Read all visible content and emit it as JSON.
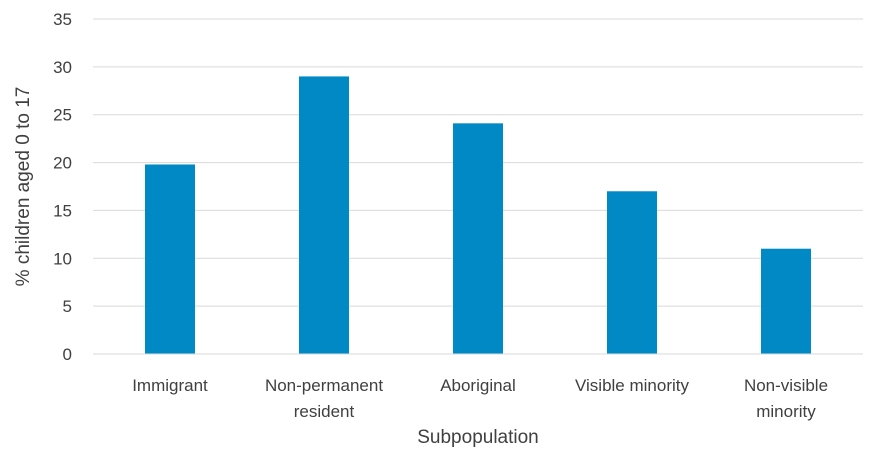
{
  "chart_data": {
    "type": "bar",
    "title": "",
    "xlabel": "Subpopulation",
    "ylabel": "% children aged 0 to 17",
    "categories": [
      [
        "Immigrant"
      ],
      [
        "Non-permanent",
        "resident"
      ],
      [
        "Aboriginal"
      ],
      [
        "Visible minority"
      ],
      [
        "Non-visible",
        "minority"
      ]
    ],
    "values": [
      19.8,
      29.0,
      24.1,
      17.0,
      11.0
    ],
    "ylim": [
      0,
      35
    ],
    "yticks": [
      "0",
      "5",
      "10",
      "15",
      "20",
      "25",
      "30",
      "35"
    ],
    "grid": true,
    "legend": "none",
    "colors": {
      "bar": "#0089C4",
      "grid": "#D9D9D9",
      "axis": "#D9D9D9",
      "text": "#404040"
    }
  }
}
